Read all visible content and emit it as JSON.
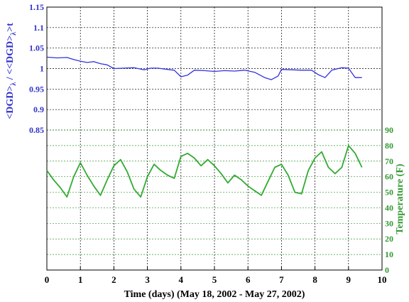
{
  "chart_data": {
    "type": "line",
    "xlabel": "Time (days) (May 18, 2002 - May 27, 2002)",
    "xlim": [
      0,
      10
    ],
    "x_ticks": [
      "0",
      "1",
      "2",
      "3",
      "4",
      "5",
      "6",
      "7",
      "8",
      "9",
      "10"
    ],
    "axes": [
      {
        "id": "upper",
        "ylabel_main": "<DGD>",
        "ylabel_sub": "λ",
        "ylabel_mid": " / <<DGD>",
        "ylabel_sub2": "λ",
        "ylabel_end": ">t",
        "ylim": [
          0.85,
          1.15
        ],
        "y_ticks": [
          "0.85",
          "0.9",
          "0.95",
          "1",
          "1.05",
          "1.1",
          "1.15"
        ],
        "color": "#3333cc",
        "grid": true
      },
      {
        "id": "lower",
        "ylabel": "Temperature (F)",
        "ylim": [
          0,
          90
        ],
        "y_ticks": [
          "0",
          "10",
          "20",
          "30",
          "40",
          "50",
          "60",
          "70",
          "80",
          "90"
        ],
        "color": "#339933",
        "grid": true
      }
    ],
    "series": [
      {
        "axis": "upper",
        "color": "#3333dd",
        "x": [
          0,
          0.3,
          0.6,
          0.8,
          1.0,
          1.2,
          1.4,
          1.6,
          1.8,
          2.0,
          2.3,
          2.6,
          2.9,
          3.1,
          3.3,
          3.6,
          3.8,
          4.0,
          4.2,
          4.4,
          4.7,
          5.0,
          5.3,
          5.6,
          5.9,
          6.2,
          6.5,
          6.7,
          6.9,
          7.0,
          7.3,
          7.6,
          7.9,
          8.1,
          8.3,
          8.5,
          8.8,
          9.0,
          9.2,
          9.4
        ],
        "y": [
          1.028,
          1.026,
          1.027,
          1.022,
          1.018,
          1.015,
          1.017,
          1.012,
          1.009,
          1.0,
          1.001,
          1.002,
          0.997,
          1.001,
          1.001,
          0.998,
          0.996,
          0.98,
          0.984,
          0.996,
          0.995,
          0.993,
          0.995,
          0.994,
          0.996,
          0.991,
          0.978,
          0.973,
          0.982,
          0.998,
          0.997,
          0.996,
          0.996,
          0.985,
          0.978,
          0.996,
          1.002,
          1.001,
          0.978,
          0.978
        ]
      },
      {
        "axis": "lower",
        "color": "#33aa33",
        "x": [
          0,
          0.2,
          0.4,
          0.6,
          0.8,
          1.0,
          1.2,
          1.4,
          1.6,
          1.8,
          2.0,
          2.2,
          2.4,
          2.6,
          2.8,
          3.0,
          3.2,
          3.4,
          3.6,
          3.8,
          4.0,
          4.2,
          4.4,
          4.6,
          4.8,
          5.0,
          5.2,
          5.4,
          5.6,
          5.8,
          6.0,
          6.2,
          6.4,
          6.6,
          6.8,
          7.0,
          7.2,
          7.4,
          7.6,
          7.8,
          8.0,
          8.2,
          8.4,
          8.6,
          8.8,
          9.0,
          9.2,
          9.4
        ],
        "y": [
          64,
          58,
          53,
          47,
          60,
          69,
          61,
          54,
          48,
          58,
          67,
          71,
          63,
          52,
          47,
          60,
          68,
          64,
          61,
          59,
          73,
          75,
          72,
          67,
          71,
          67,
          62,
          56,
          61,
          58,
          54,
          51,
          48,
          57,
          66,
          68,
          61,
          50,
          49,
          64,
          72,
          76,
          66,
          62,
          66,
          80,
          75,
          66
        ]
      }
    ]
  }
}
